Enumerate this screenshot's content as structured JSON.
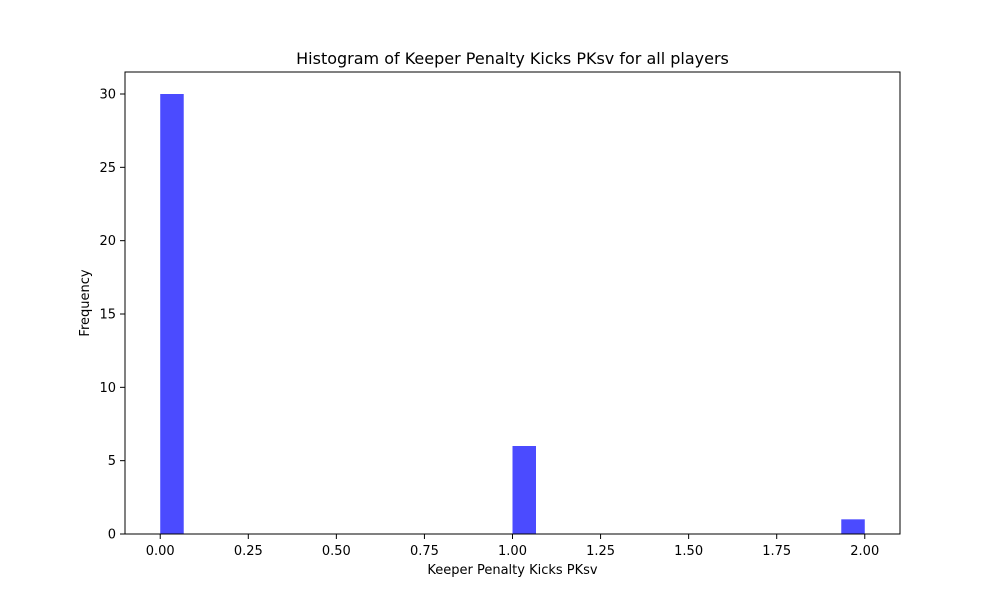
{
  "chart_data": {
    "type": "bar",
    "title": "Histogram of Keeper Penalty Kicks PKsv for all players",
    "xlabel": "Keeper Penalty Kicks PKsv",
    "ylabel": "Frequency",
    "xlim": [
      -0.1,
      2.1
    ],
    "ylim": [
      0,
      31.5
    ],
    "grid": false,
    "bar_color": "#4b4bff",
    "bin_width": 0.0667,
    "xticks": [
      "0.00",
      "0.25",
      "0.50",
      "0.75",
      "1.00",
      "1.25",
      "1.50",
      "1.75",
      "2.00"
    ],
    "yticks": [
      "0",
      "5",
      "10",
      "15",
      "20",
      "25",
      "30"
    ],
    "bins": [
      {
        "start": 0.0,
        "end": 0.0667,
        "count": 30
      },
      {
        "start": 1.0,
        "end": 1.0667,
        "count": 6
      },
      {
        "start": 1.9333,
        "end": 2.0,
        "count": 1
      }
    ]
  }
}
